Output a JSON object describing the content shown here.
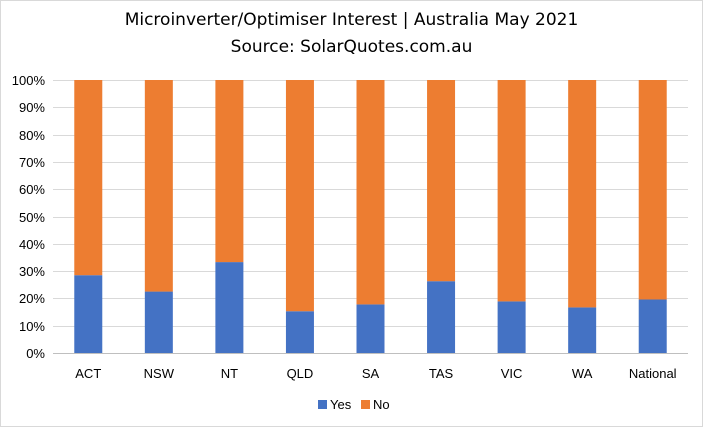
{
  "chart_data": {
    "type": "bar",
    "stacked": true,
    "title": "Microinverter/Optimiser  Interest  | Australia May 2021",
    "subtitle": "Source: SolarQuotes.com.au",
    "categories": [
      "ACT",
      "NSW",
      "NT",
      "QLD",
      "SA",
      "TAS",
      "VIC",
      "WA",
      "National"
    ],
    "series": [
      {
        "name": "Yes",
        "color": "#4472c4",
        "values": [
          28.5,
          22.5,
          33.3,
          15.3,
          17.8,
          26.3,
          18.9,
          16.7,
          19.6
        ]
      },
      {
        "name": "No",
        "color": "#ed7d31",
        "values": [
          71.5,
          77.5,
          66.7,
          84.7,
          82.2,
          73.7,
          81.1,
          83.3,
          80.4
        ]
      }
    ],
    "ylim": [
      0,
      100
    ],
    "y_ticks": [
      "0%",
      "10%",
      "20%",
      "30%",
      "40%",
      "50%",
      "60%",
      "70%",
      "80%",
      "90%",
      "100%"
    ],
    "grid": true,
    "legend": "bottom-center",
    "xlabel": "",
    "ylabel": ""
  }
}
